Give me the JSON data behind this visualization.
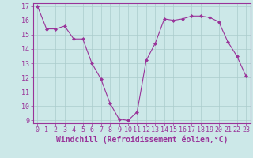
{
  "x": [
    0,
    1,
    2,
    3,
    4,
    5,
    6,
    7,
    8,
    9,
    10,
    11,
    12,
    13,
    14,
    15,
    16,
    17,
    18,
    19,
    20,
    21,
    22,
    23
  ],
  "y": [
    17.0,
    15.4,
    15.4,
    15.6,
    14.7,
    14.7,
    13.0,
    11.9,
    10.2,
    9.1,
    9.0,
    9.6,
    13.2,
    14.4,
    16.1,
    16.0,
    16.1,
    16.3,
    16.3,
    16.2,
    15.9,
    14.5,
    13.5,
    12.1
  ],
  "line_color": "#993399",
  "marker": "D",
  "marker_size": 2,
  "bg_color": "#cce8e8",
  "grid_color": "#aacccc",
  "xlabel": "Windchill (Refroidissement éolien,°C)",
  "xlabel_color": "#993399",
  "tick_color": "#993399",
  "label_color": "#993399",
  "ylim": [
    9,
    17
  ],
  "xlim": [
    -0.5,
    23.5
  ],
  "yticks": [
    9,
    10,
    11,
    12,
    13,
    14,
    15,
    16,
    17
  ],
  "xticks": [
    0,
    1,
    2,
    3,
    4,
    5,
    6,
    7,
    8,
    9,
    10,
    11,
    12,
    13,
    14,
    15,
    16,
    17,
    18,
    19,
    20,
    21,
    22,
    23
  ],
  "tick_fontsize": 6,
  "xlabel_fontsize": 7
}
